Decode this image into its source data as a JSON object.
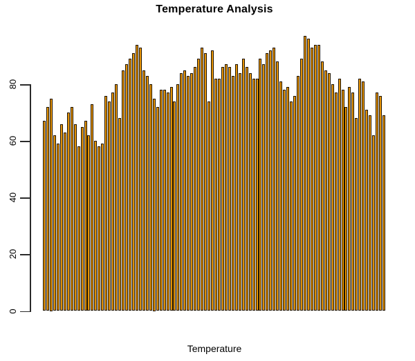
{
  "chart_data": {
    "type": "bar",
    "title": "Temperature Analysis",
    "xlabel": "Temperature",
    "ylabel": "",
    "yticks": [
      0,
      20,
      40,
      60,
      80
    ],
    "ylim": [
      0,
      100
    ],
    "grid": false,
    "legend": false,
    "bar_fill_color": "#E59400",
    "bar_border_color": "#1c1202",
    "axis_color": "#2a2a2a",
    "background_color": "#ffffff",
    "values": [
      67,
      72,
      75,
      62,
      59,
      66,
      63,
      70,
      72,
      66,
      58,
      65,
      67,
      62,
      73,
      60,
      58,
      59,
      76,
      74,
      77,
      80,
      68,
      85,
      87,
      89,
      91,
      94,
      93,
      85,
      83,
      80,
      75,
      72,
      78,
      78,
      77,
      79,
      74,
      80,
      84,
      85,
      83,
      84,
      86,
      89,
      93,
      91,
      74,
      92,
      82,
      82,
      86,
      87,
      86,
      83,
      87,
      84,
      89,
      86,
      84,
      82,
      82,
      89,
      87,
      91,
      92,
      93,
      88,
      81,
      78,
      79,
      74,
      76,
      83,
      89,
      97,
      96,
      93,
      94,
      94,
      88,
      85,
      84,
      80,
      77,
      82,
      78,
      72,
      79,
      77,
      68,
      82,
      81,
      71,
      69,
      62,
      77,
      76,
      69
    ]
  }
}
